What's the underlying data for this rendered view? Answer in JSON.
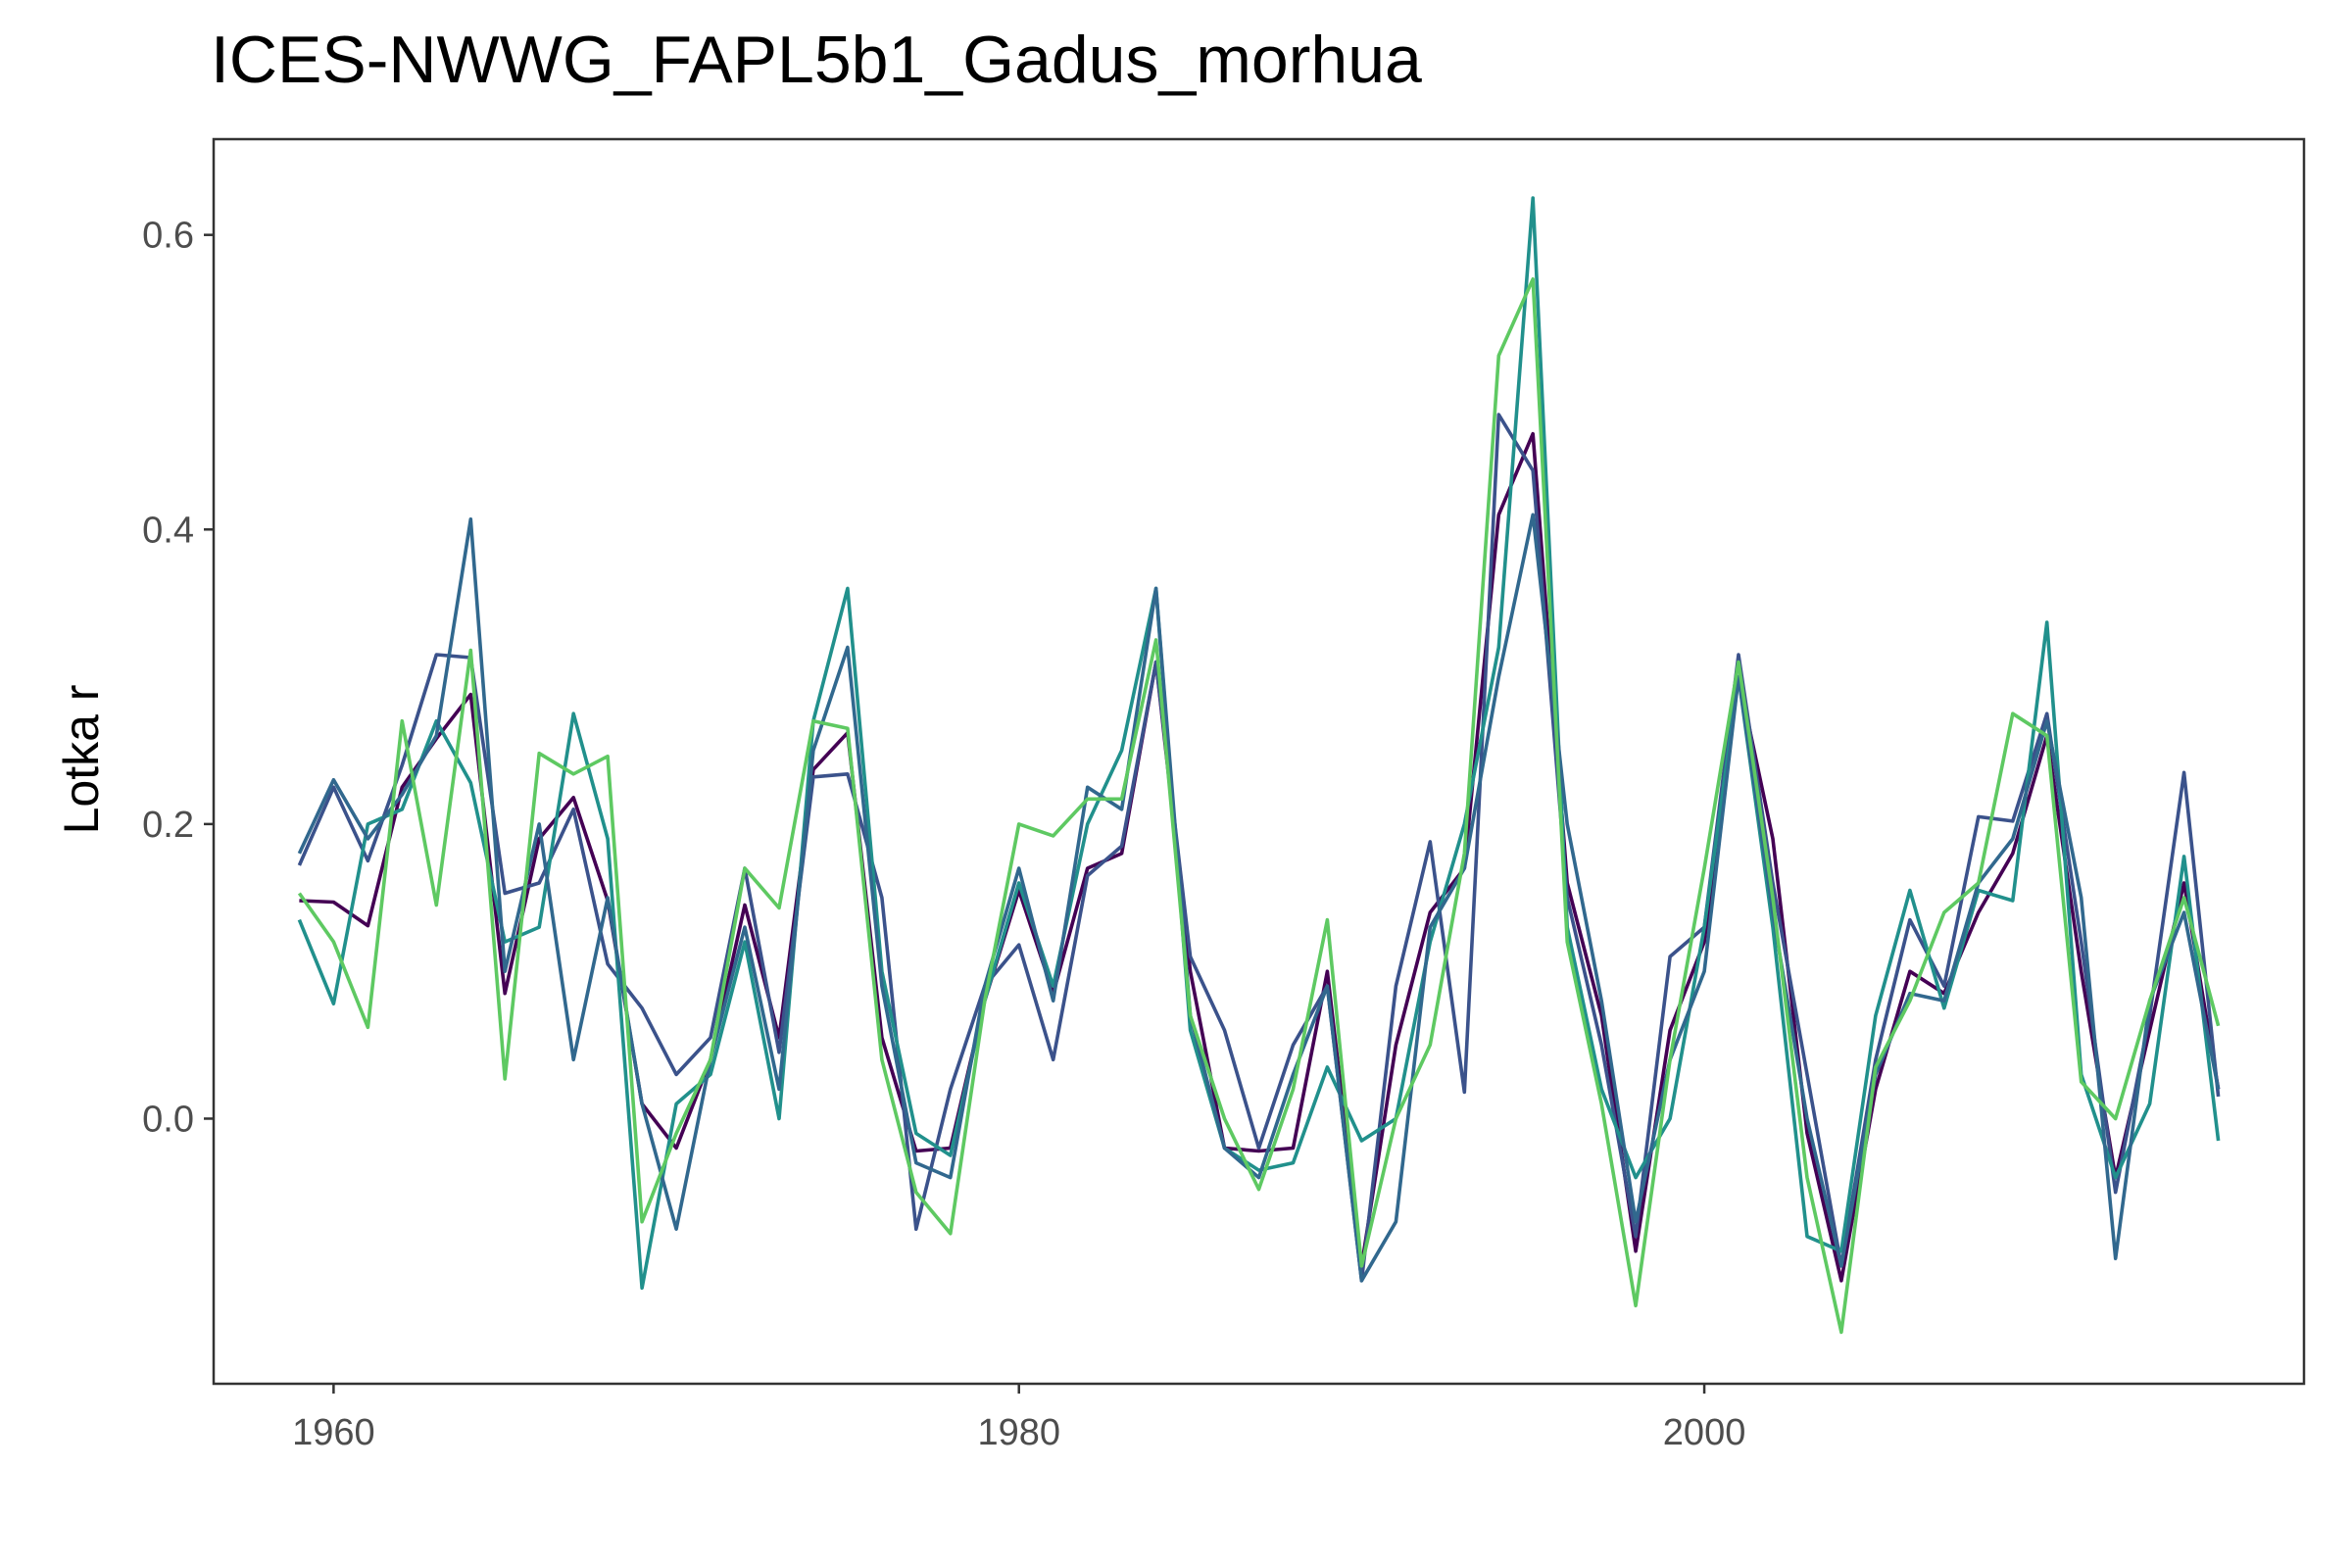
{
  "chart_data": {
    "type": "line",
    "title": "ICES-NWWG_FAPL5b1_Gadus_morhua",
    "xlabel": "",
    "ylabel": "Lotka r",
    "xlim": [
      1956.5,
      2017.5
    ],
    "ylim": [
      -0.18,
      0.665
    ],
    "xticks": [
      1960,
      1980,
      2000
    ],
    "xtick_labels": [
      "1960",
      "1980",
      "2000"
    ],
    "yticks": [
      0.0,
      0.2,
      0.4,
      0.6
    ],
    "ytick_labels": [
      "0.0",
      "0.2",
      "0.4",
      "0.6"
    ],
    "grid": false,
    "legend": "none",
    "x": [
      1959,
      1960,
      1961,
      1962,
      1963,
      1964,
      1965,
      1966,
      1967,
      1968,
      1969,
      1970,
      1971,
      1972,
      1973,
      1974,
      1975,
      1976,
      1977,
      1978,
      1979,
      1980,
      1981,
      1982,
      1983,
      1984,
      1985,
      1986,
      1987,
      1988,
      1989,
      1990,
      1991,
      1992,
      1993,
      1994,
      1995,
      1996,
      1997,
      1998,
      1999,
      2000,
      2001,
      2002,
      2003,
      2004,
      2005,
      2006,
      2007,
      2008,
      2009,
      2010,
      2011,
      2012,
      2013,
      2014,
      2015
    ],
    "series": [
      {
        "color": "#440154",
        "values": [
          0.148,
          0.147,
          0.131,
          0.225,
          0.258,
          0.288,
          0.085,
          0.19,
          0.218,
          0.148,
          0.01,
          -0.02,
          0.04,
          0.145,
          0.055,
          0.237,
          0.262,
          0.055,
          -0.022,
          -0.02,
          0.08,
          0.155,
          0.085,
          0.17,
          0.18,
          0.31,
          0.1,
          -0.02,
          -0.022,
          -0.02,
          0.1,
          -0.1,
          0.05,
          0.14,
          0.17,
          0.41,
          0.465,
          0.16,
          0.07,
          -0.09,
          0.06,
          0.12,
          0.3,
          0.19,
          -0.01,
          -0.11,
          0.02,
          0.1,
          0.085,
          0.14,
          0.18,
          0.26,
          0.1,
          -0.04,
          0.06,
          0.16,
          0.02
        ]
      },
      {
        "color": "#3b528b",
        "values": [
          0.172,
          0.225,
          0.175,
          0.24,
          0.315,
          0.313,
          0.153,
          0.16,
          0.21,
          0.105,
          0.075,
          0.03,
          0.055,
          0.17,
          0.045,
          0.232,
          0.234,
          0.15,
          -0.075,
          0.02,
          0.09,
          0.118,
          0.04,
          0.165,
          0.185,
          0.31,
          0.11,
          0.06,
          -0.02,
          0.05,
          0.09,
          -0.11,
          0.09,
          0.188,
          0.018,
          0.478,
          0.44,
          0.15,
          0.05,
          -0.08,
          0.11,
          0.13,
          0.315,
          0.16,
          0.03,
          -0.1,
          0.04,
          0.135,
          0.09,
          0.205,
          0.202,
          0.275,
          0.12,
          -0.05,
          0.07,
          0.235,
          0.015
        ]
      },
      {
        "color": "#21908c",
        "values": [
          0.135,
          0.078,
          0.2,
          0.21,
          0.27,
          0.228,
          0.12,
          0.13,
          0.275,
          0.19,
          -0.115,
          0.01,
          0.03,
          0.12,
          0.0,
          0.27,
          0.36,
          0.1,
          -0.01,
          -0.025,
          0.08,
          0.16,
          0.09,
          0.2,
          0.25,
          0.36,
          0.06,
          -0.02,
          -0.035,
          -0.03,
          0.035,
          -0.015,
          0.0,
          0.12,
          0.2,
          0.32,
          0.625,
          0.13,
          0.02,
          -0.04,
          0.0,
          0.13,
          0.3,
          0.13,
          -0.08,
          -0.09,
          0.07,
          0.155,
          0.075,
          0.155,
          0.148,
          0.337,
          0.03,
          -0.04,
          0.01,
          0.178,
          -0.015
        ]
      },
      {
        "color": "#31688e",
        "values": [
          0.18,
          0.23,
          0.19,
          0.22,
          0.26,
          0.407,
          0.1,
          0.2,
          0.04,
          0.15,
          0.01,
          -0.075,
          0.04,
          0.13,
          0.02,
          0.25,
          0.32,
          0.09,
          -0.03,
          -0.04,
          0.09,
          0.17,
          0.08,
          0.225,
          0.21,
          0.36,
          0.07,
          -0.02,
          -0.04,
          0.03,
          0.09,
          -0.11,
          -0.07,
          0.13,
          0.17,
          0.3,
          0.41,
          0.2,
          0.08,
          -0.07,
          0.04,
          0.1,
          0.3,
          0.14,
          0.0,
          -0.1,
          0.03,
          0.085,
          0.08,
          0.16,
          0.19,
          0.27,
          0.15,
          -0.095,
          0.08,
          0.14,
          0.02
        ]
      },
      {
        "color": "#5ec962",
        "values": [
          0.153,
          0.12,
          0.062,
          0.27,
          0.145,
          0.318,
          0.027,
          0.248,
          0.234,
          0.246,
          -0.07,
          -0.01,
          0.04,
          0.17,
          0.143,
          0.27,
          0.265,
          0.04,
          -0.05,
          -0.078,
          0.08,
          0.2,
          0.192,
          0.217,
          0.217,
          0.325,
          0.07,
          0.0,
          -0.048,
          0.02,
          0.135,
          -0.1,
          0.0,
          0.05,
          0.18,
          0.518,
          0.57,
          0.12,
          0.01,
          -0.127,
          0.04,
          0.17,
          0.31,
          0.15,
          -0.04,
          -0.145,
          0.035,
          0.08,
          0.14,
          0.16,
          0.275,
          0.26,
          0.025,
          0.0,
          0.08,
          0.15,
          0.063
        ]
      }
    ]
  }
}
